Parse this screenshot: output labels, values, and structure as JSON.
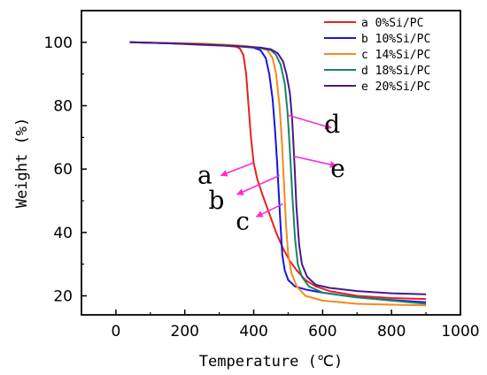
{
  "chart_data": {
    "type": "line",
    "title": "",
    "xlabel": "Temperature (℃)",
    "ylabel": "Weight (%)",
    "xlim": [
      -100,
      1000
    ],
    "ylim": [
      14,
      110
    ],
    "xticks": [
      0,
      200,
      400,
      600,
      800,
      1000
    ],
    "yticks": [
      20,
      40,
      60,
      80,
      100
    ],
    "grid": false,
    "legend_position": "top-right",
    "series": [
      {
        "name": "a  0%Si/PC",
        "color": "#e8201f",
        "points": [
          [
            40,
            100
          ],
          [
            150,
            99.7
          ],
          [
            250,
            99.2
          ],
          [
            320,
            98.9
          ],
          [
            350,
            98.6
          ],
          [
            360,
            98.0
          ],
          [
            370,
            96
          ],
          [
            378,
            90
          ],
          [
            385,
            80
          ],
          [
            392,
            70
          ],
          [
            400,
            62
          ],
          [
            410,
            57
          ],
          [
            425,
            52
          ],
          [
            445,
            46
          ],
          [
            465,
            40
          ],
          [
            485,
            35
          ],
          [
            505,
            31
          ],
          [
            525,
            28
          ],
          [
            550,
            25
          ],
          [
            580,
            23
          ],
          [
            620,
            21.5
          ],
          [
            700,
            20
          ],
          [
            800,
            19.3
          ],
          [
            900,
            19
          ]
        ]
      },
      {
        "name": "b  10%Si/PC",
        "color": "#1515e0",
        "points": [
          [
            40,
            100
          ],
          [
            150,
            99.7
          ],
          [
            250,
            99.3
          ],
          [
            350,
            98.8
          ],
          [
            400,
            98.3
          ],
          [
            420,
            97.5
          ],
          [
            435,
            95
          ],
          [
            445,
            90
          ],
          [
            455,
            82
          ],
          [
            462,
            72
          ],
          [
            468,
            62
          ],
          [
            473,
            52
          ],
          [
            478,
            42
          ],
          [
            483,
            33
          ],
          [
            490,
            28
          ],
          [
            500,
            25
          ],
          [
            520,
            23
          ],
          [
            550,
            22
          ],
          [
            600,
            21
          ],
          [
            700,
            19.5
          ],
          [
            800,
            18.7
          ],
          [
            900,
            18
          ]
        ]
      },
      {
        "name": "c  14%Si/PC",
        "color": "#f58a1f",
        "points": [
          [
            40,
            100
          ],
          [
            150,
            99.8
          ],
          [
            250,
            99.6
          ],
          [
            330,
            99.2
          ],
          [
            380,
            98.8
          ],
          [
            420,
            98.2
          ],
          [
            440,
            97.5
          ],
          [
            455,
            95
          ],
          [
            465,
            90
          ],
          [
            475,
            80
          ],
          [
            482,
            68
          ],
          [
            488,
            55
          ],
          [
            494,
            42
          ],
          [
            500,
            33
          ],
          [
            510,
            27
          ],
          [
            525,
            23
          ],
          [
            550,
            20
          ],
          [
            600,
            18.5
          ],
          [
            700,
            17.5
          ],
          [
            800,
            17.2
          ],
          [
            900,
            17
          ]
        ]
      },
      {
        "name": "d  18%Si/PC",
        "color": "#17846a",
        "points": [
          [
            40,
            100
          ],
          [
            150,
            99.7
          ],
          [
            250,
            99.3
          ],
          [
            350,
            98.8
          ],
          [
            420,
            98.2
          ],
          [
            450,
            97.5
          ],
          [
            465,
            96
          ],
          [
            478,
            93
          ],
          [
            490,
            87
          ],
          [
            498,
            78
          ],
          [
            505,
            66
          ],
          [
            512,
            52
          ],
          [
            520,
            38
          ],
          [
            528,
            30
          ],
          [
            540,
            26
          ],
          [
            560,
            23
          ],
          [
            600,
            21
          ],
          [
            700,
            19.5
          ],
          [
            800,
            18.5
          ],
          [
            900,
            17.5
          ]
        ]
      },
      {
        "name": "e  20%Si/PC",
        "color": "#48188c",
        "points": [
          [
            40,
            100
          ],
          [
            150,
            99.7
          ],
          [
            250,
            99.3
          ],
          [
            350,
            98.8
          ],
          [
            420,
            98.3
          ],
          [
            450,
            97.8
          ],
          [
            470,
            96.5
          ],
          [
            485,
            94
          ],
          [
            495,
            90
          ],
          [
            505,
            84
          ],
          [
            512,
            75
          ],
          [
            518,
            62
          ],
          [
            524,
            48
          ],
          [
            532,
            36
          ],
          [
            540,
            30
          ],
          [
            555,
            26
          ],
          [
            580,
            23.5
          ],
          [
            620,
            22.5
          ],
          [
            700,
            21.5
          ],
          [
            800,
            20.8
          ],
          [
            900,
            20.5
          ]
        ]
      }
    ],
    "annotations": [
      {
        "text": "a",
        "color": "#ff2bd0",
        "tail": [
          400,
          62
        ],
        "head": [
          305,
          58
        ],
        "label_pos": [
          258,
          58
        ]
      },
      {
        "text": "b",
        "color": "#ff2bd0",
        "tail": [
          475,
          58
        ],
        "head": [
          352,
          52
        ],
        "label_pos": [
          292,
          50
        ]
      },
      {
        "text": "c",
        "color": "#ff2bd0",
        "tail": [
          485,
          49
        ],
        "head": [
          408,
          45
        ],
        "label_pos": [
          368,
          43.5
        ]
      },
      {
        "text": "d",
        "color": "#ff2bd0",
        "tail": [
          500,
          77
        ],
        "head": [
          625,
          73
        ],
        "label_pos": [
          628,
          74
        ]
      },
      {
        "text": "e",
        "color": "#ff2bd0",
        "tail": [
          517,
          64
        ],
        "head": [
          640,
          61
        ],
        "label_pos": [
          644,
          60
        ]
      }
    ]
  }
}
